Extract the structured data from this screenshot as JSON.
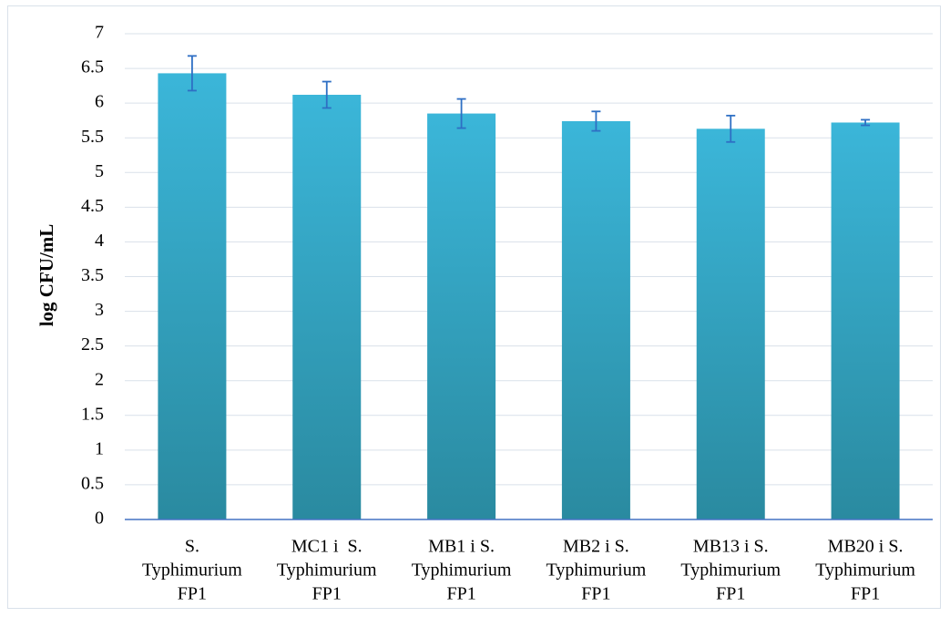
{
  "chart_data": {
    "type": "bar",
    "title": "",
    "xlabel": "",
    "ylabel": "log CFU/mL",
    "ylim": [
      0,
      7
    ],
    "yticks": [
      "0",
      "0.5",
      "1",
      "1.5",
      "2",
      "2.5",
      "3",
      "3.5",
      "4",
      "4.5",
      "5",
      "5.5",
      "6",
      "6.5",
      "7"
    ],
    "grid": true,
    "categories": [
      [
        "S.",
        "Typhimurium",
        "FP1"
      ],
      [
        "MC1 i  S.",
        "Typhimurium",
        "FP1"
      ],
      [
        "MB1 i S.",
        "Typhimurium",
        "FP1"
      ],
      [
        "MB2 i S.",
        "Typhimurium",
        "FP1"
      ],
      [
        "MB13 i S.",
        "Typhimurium",
        "FP1"
      ],
      [
        "MB20 i S.",
        "Typhimurium",
        "FP1"
      ]
    ],
    "values": [
      6.43,
      6.12,
      5.85,
      5.74,
      5.63,
      5.72
    ],
    "errors": [
      0.25,
      0.19,
      0.21,
      0.14,
      0.19,
      0.04
    ],
    "colors": {
      "bar_top": "#3bb6d9",
      "bar_bottom": "#2a8aa0",
      "error_bar": "#2e6fc4",
      "grid": "#d9e1ea",
      "axis": "#4472c4"
    }
  }
}
